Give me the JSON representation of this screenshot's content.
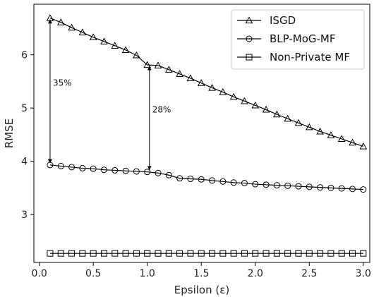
{
  "chart_data": {
    "type": "line",
    "xlabel": "Epsilon (ε)",
    "ylabel": "RMSE",
    "xlim": [
      -0.05,
      3.06
    ],
    "ylim": [
      2.1,
      6.95
    ],
    "xticks": [
      0.0,
      0.5,
      1.0,
      1.5,
      2.0,
      2.5,
      3.0
    ],
    "xtick_labels": [
      "0.0",
      "0.5",
      "1.0",
      "1.5",
      "2.0",
      "2.5",
      "3.0"
    ],
    "yticks": [
      3,
      4,
      5,
      6
    ],
    "ytick_labels": [
      "3",
      "4",
      "5",
      "6"
    ],
    "grid": false,
    "legend_position": "top-right",
    "x": [
      0.1,
      0.2,
      0.3,
      0.4,
      0.5,
      0.6,
      0.7,
      0.8,
      0.9,
      1.0,
      1.1,
      1.2,
      1.3,
      1.4,
      1.5,
      1.6,
      1.7,
      1.8,
      1.9,
      2.0,
      2.1,
      2.2,
      2.3,
      2.4,
      2.5,
      2.6,
      2.7,
      2.8,
      2.9,
      3.0
    ],
    "series": [
      {
        "name": "ISGD",
        "marker": "triangle",
        "values": [
          6.69,
          6.61,
          6.51,
          6.42,
          6.33,
          6.25,
          6.17,
          6.09,
          5.99,
          5.81,
          5.8,
          5.72,
          5.64,
          5.56,
          5.47,
          5.38,
          5.3,
          5.21,
          5.13,
          5.05,
          4.97,
          4.88,
          4.8,
          4.72,
          4.64,
          4.56,
          4.49,
          4.42,
          4.35,
          4.28
        ]
      },
      {
        "name": "BLP-MoG-MF",
        "marker": "circle",
        "values": [
          3.93,
          3.91,
          3.89,
          3.87,
          3.86,
          3.84,
          3.83,
          3.82,
          3.81,
          3.8,
          3.78,
          3.74,
          3.68,
          3.67,
          3.66,
          3.64,
          3.62,
          3.6,
          3.59,
          3.57,
          3.56,
          3.55,
          3.54,
          3.53,
          3.52,
          3.51,
          3.5,
          3.49,
          3.48,
          3.47
        ]
      },
      {
        "name": "Non-Private MF",
        "marker": "square",
        "values": [
          2.27,
          2.27,
          2.27,
          2.27,
          2.27,
          2.27,
          2.27,
          2.27,
          2.27,
          2.27,
          2.27,
          2.27,
          2.27,
          2.27,
          2.27,
          2.27,
          2.27,
          2.27,
          2.27,
          2.27,
          2.27,
          2.27,
          2.27,
          2.27,
          2.27,
          2.27,
          2.27,
          2.27,
          2.27,
          2.27
        ]
      }
    ],
    "annotations": [
      {
        "text": "35%",
        "x": 0.1,
        "from": 3.97,
        "to": 6.66
      },
      {
        "text": "28%",
        "x": 1.02,
        "from": 3.84,
        "to": 5.78
      }
    ]
  }
}
